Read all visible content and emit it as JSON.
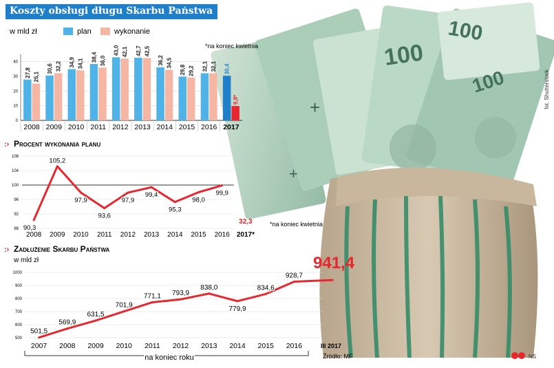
{
  "title": "Koszty obsługi długu Skarbu Państwa",
  "photo_credit": "fot. Shutterstock",
  "chart_data": [
    {
      "type": "bar",
      "unit": "w mld zł",
      "legend": [
        "plan",
        "wykonanie"
      ],
      "footnote": "*na koniec kwietnia",
      "categories": [
        "2008",
        "2009",
        "2010",
        "2011",
        "2012",
        "2013",
        "2014",
        "2015",
        "2016",
        "2017"
      ],
      "last_category_bold": "2017",
      "series": [
        {
          "name": "plan",
          "color": "#4fb3e8",
          "values": [
            27.8,
            30.6,
            34.9,
            38.4,
            43.0,
            42.7,
            36.2,
            29.8,
            32.1,
            30.4
          ],
          "labels": [
            "27,8",
            "30,6",
            "34,9",
            "38,4",
            "43,0",
            "42,7",
            "36,2",
            "29,8",
            "32,1",
            "30,4"
          ]
        },
        {
          "name": "wykonanie",
          "color": "#f5b7a4",
          "values": [
            25.1,
            32.2,
            34.1,
            36.0,
            42.1,
            42.5,
            34.5,
            29.2,
            32.1,
            9.8
          ],
          "labels": [
            "25,1",
            "32,2",
            "34,1",
            "36,0",
            "42,1",
            "42,5",
            "34,5",
            "29,2",
            "32,1",
            "9,8*"
          ]
        }
      ],
      "highlight": {
        "category": "2017",
        "plan_color": "#1f7fc9",
        "wykonanie_color": "#e8262d"
      },
      "ylim": [
        0,
        45
      ],
      "yticks": [
        0,
        10,
        20,
        30,
        40
      ]
    },
    {
      "type": "line",
      "title": "Procent wykonania planu",
      "categories": [
        "2008",
        "2009",
        "2010",
        "2011",
        "2012",
        "2013",
        "2014",
        "2015",
        "2016",
        "2017*"
      ],
      "values": [
        90.3,
        105.2,
        97.9,
        93.6,
        97.9,
        99.4,
        95.3,
        98.0,
        99.9
      ],
      "labels": [
        "90,3",
        "105,2",
        "97,9",
        "93,6",
        "97,9",
        "99,4",
        "95,3",
        "98,0",
        "99,9"
      ],
      "extra_value": {
        "category": "2017*",
        "value": 32.3,
        "label": "32,3",
        "color": "#e8262d"
      },
      "footnote": "*na koniec kwietnia",
      "reference_line": 100,
      "ylim": [
        88,
        108
      ],
      "yticks": [
        88,
        92,
        96,
        100,
        104,
        108
      ],
      "color": "#e8262d"
    },
    {
      "type": "line",
      "title": "Zadłużenie Skarbu Państwa",
      "unit": "w mld zł",
      "categories": [
        "2007",
        "2008",
        "2009",
        "2010",
        "2011",
        "2012",
        "2013",
        "2014",
        "2015",
        "2016",
        "III 2017"
      ],
      "values": [
        501.5,
        569.9,
        631.5,
        701.9,
        771.1,
        793.9,
        838.0,
        779.9,
        834.6,
        928.7,
        941.4
      ],
      "labels": [
        "501,5",
        "569,9",
        "631,5",
        "701,9",
        "771,1",
        "793,9",
        "838,0",
        "779,9",
        "834,6",
        "928,7",
        "941,4"
      ],
      "bracket_label": "na koniec roku",
      "source": "Źródło: MF",
      "ylim": [
        500,
        1000
      ],
      "yticks": [
        500,
        600,
        700,
        800,
        900,
        1000
      ],
      "color": "#e8262d"
    }
  ],
  "logo_text": "NS"
}
